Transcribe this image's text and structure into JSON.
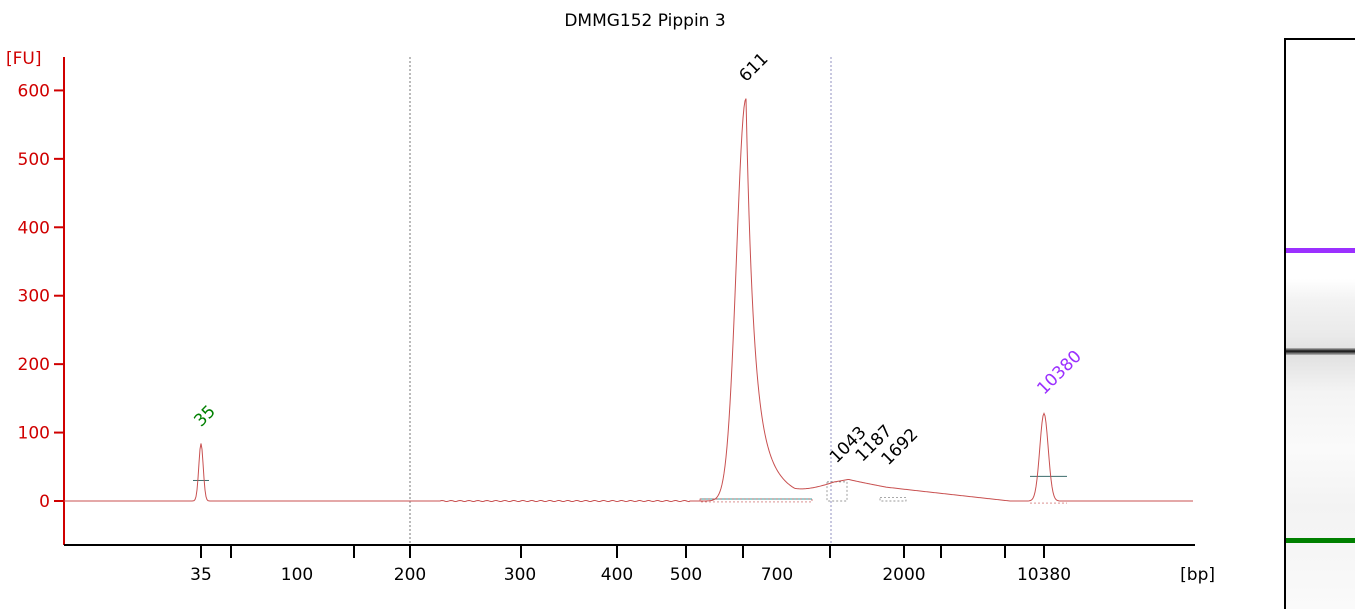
{
  "chart_data": {
    "type": "line",
    "title": "DMMG152 Pippin 3",
    "y_unit_label": "[FU]",
    "x_unit_label": "[bp]",
    "ylim": [
      -60,
      640
    ],
    "y_ticks": [
      0,
      100,
      200,
      300,
      400,
      500,
      600
    ],
    "x_ticks": [
      "35",
      "100",
      "200",
      "300",
      "400",
      "500",
      "700",
      "2000",
      "10380"
    ],
    "grid": false,
    "colors": {
      "trace": "#c85050",
      "y_axis": "#d00000",
      "lower_marker": "#008000",
      "upper_marker": "#9b30ff",
      "peak_label": "#000000",
      "baseline": "#3c9c9c"
    },
    "series": [
      {
        "values": [
          {
            "bp": 35,
            "fu": 0
          },
          {
            "bp": 35,
            "fu": 84
          },
          {
            "bp": 35,
            "fu": 0
          },
          {
            "bp": 200,
            "fu": 0
          },
          {
            "bp": 500,
            "fu": 2
          },
          {
            "bp": 560,
            "fu": 60
          },
          {
            "bp": 611,
            "fu": 588
          },
          {
            "bp": 650,
            "fu": 150
          },
          {
            "bp": 700,
            "fu": 40
          },
          {
            "bp": 1000,
            "fu": 25
          },
          {
            "bp": 1187,
            "fu": 30
          },
          {
            "bp": 1692,
            "fu": 20
          },
          {
            "bp": 5000,
            "fu": 5
          },
          {
            "bp": 10380,
            "fu": 0
          },
          {
            "bp": 10380,
            "fu": 128
          },
          {
            "bp": 10380,
            "fu": 0
          }
        ]
      }
    ],
    "peaks": [
      {
        "label": "35",
        "bp": 35,
        "fu": 84,
        "color": "#008000"
      },
      {
        "label": "611",
        "bp": 611,
        "fu": 588,
        "color": "#000000"
      },
      {
        "label": "1043",
        "bp": 1043,
        "fu": 28,
        "color": "#000000"
      },
      {
        "label": "1187",
        "bp": 1187,
        "fu": 30,
        "color": "#000000"
      },
      {
        "label": "1692",
        "bp": 1692,
        "fu": 22,
        "color": "#000000"
      },
      {
        "label": "10380",
        "bp": 10380,
        "fu": 128,
        "color": "#9b30ff"
      }
    ]
  },
  "gel": {
    "bands": [
      {
        "name": "upper-marker",
        "color": "#9b30ff"
      },
      {
        "name": "sample-band",
        "color": "#111111"
      },
      {
        "name": "lower-marker",
        "color": "#008000"
      }
    ]
  }
}
